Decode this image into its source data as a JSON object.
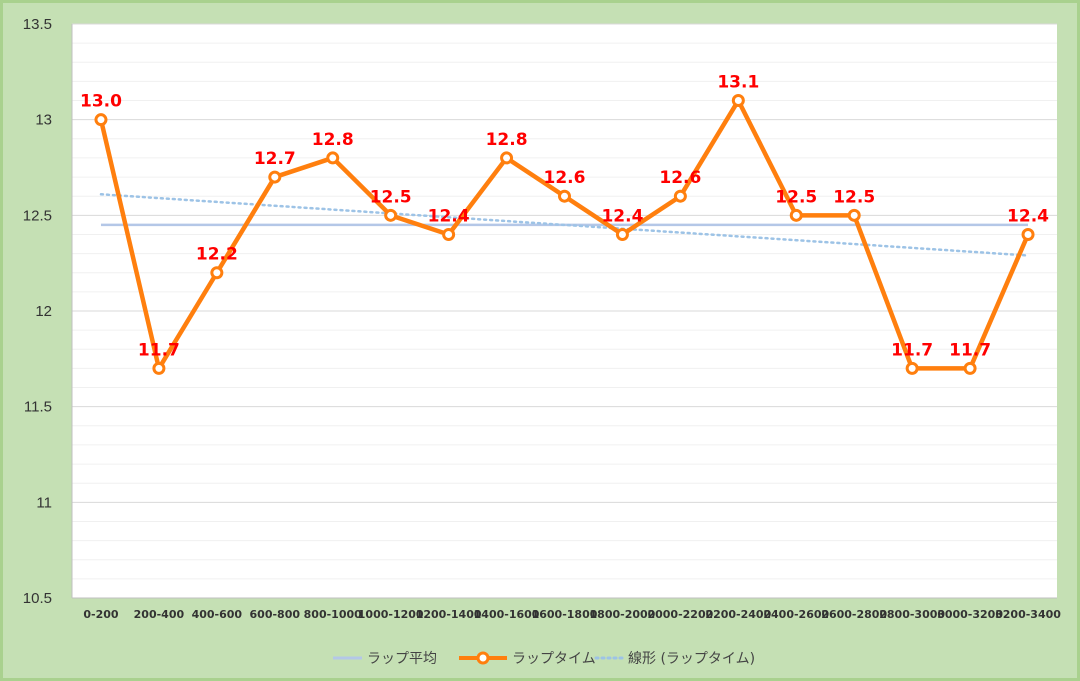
{
  "chart_data": {
    "type": "line",
    "categories": [
      "0-200",
      "200-400",
      "400-600",
      "600-800",
      "800-1000",
      "1000-1200",
      "1200-1400",
      "1400-1600",
      "1600-1800",
      "1800-2000",
      "2000-2200",
      "2200-2400",
      "2400-2600",
      "2600-2800",
      "2800-3000",
      "3000-3200",
      "3200-3400"
    ],
    "series": [
      {
        "name": "ラップタイム",
        "values": [
          13.0,
          11.7,
          12.2,
          12.7,
          12.8,
          12.5,
          12.4,
          12.8,
          12.6,
          12.4,
          12.6,
          13.1,
          12.5,
          12.5,
          11.7,
          11.7,
          12.4
        ],
        "labels": [
          "13.0",
          "11.7",
          "12.2",
          "12.7",
          "12.8",
          "12.5",
          "12.4",
          "12.8",
          "12.6",
          "12.4",
          "12.6",
          "13.1",
          "12.5",
          "12.5",
          "11.7",
          "11.7",
          "12.4"
        ],
        "color": "#ff7f0e",
        "marker_fill": "#ffffff",
        "label_color": "#ff0000"
      },
      {
        "name": "ラップ平均",
        "values": [
          12.45,
          12.45,
          12.45,
          12.45,
          12.45,
          12.45,
          12.45,
          12.45,
          12.45,
          12.45,
          12.45,
          12.45,
          12.45,
          12.45,
          12.45,
          12.45,
          12.45
        ],
        "color": "#b4c7e7"
      },
      {
        "name": "線形 (ラップタイム)",
        "values": [
          12.61,
          12.59,
          12.57,
          12.55,
          12.53,
          12.51,
          12.49,
          12.47,
          12.45,
          12.43,
          12.41,
          12.39,
          12.37,
          12.35,
          12.33,
          12.31,
          12.29
        ],
        "color": "#9dc3e6",
        "style": "dotted"
      }
    ],
    "yticks": [
      "10.5",
      "11",
      "11.5",
      "12",
      "12.5",
      "13",
      "13.5"
    ],
    "ylim": [
      10.5,
      13.5
    ],
    "grid": "horizontal",
    "legend": "bottom",
    "colors": {
      "background": "#c5e0b4",
      "border": "#a9d18e",
      "plot": "#ffffff",
      "gridline": "#d9d9d9"
    }
  }
}
